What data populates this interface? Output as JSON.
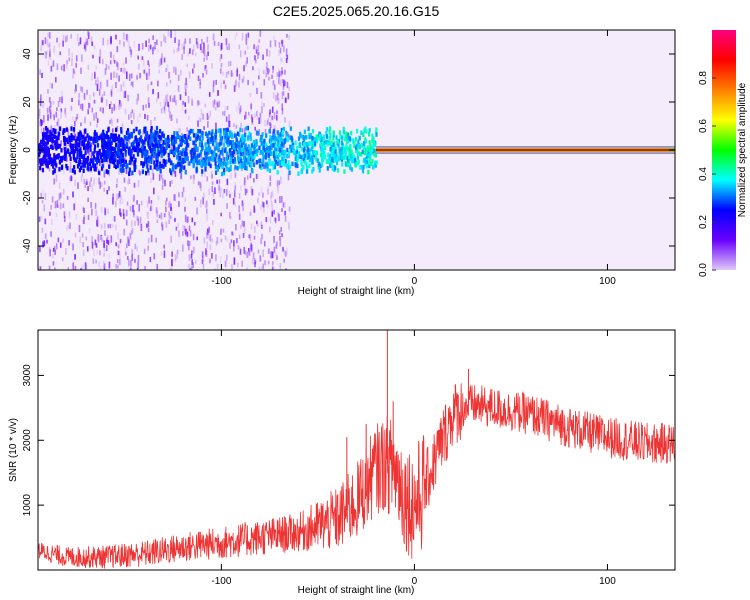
{
  "title": "C2E5.2025.065.20.16.G15",
  "colors": {
    "snr_line": "#ee3333",
    "background_fill": "#f5ecfb",
    "noise_purple": "#b58be6",
    "deep_purple": "#6a1fe0",
    "blue": "#2233e8"
  },
  "chart_data": [
    {
      "type": "heatmap",
      "name": "spectrogram",
      "xlabel": "Height of straight line (km)",
      "ylabel": "Frequency (Hz)",
      "xlim": [
        -195,
        135
      ],
      "ylim": [
        -50,
        50
      ],
      "xticks": [
        -100,
        0,
        100
      ],
      "xtick_labels": [
        "-100",
        "0",
        "100"
      ],
      "yticks": [
        -40,
        -20,
        0,
        20,
        40
      ],
      "ytick_labels": [
        "-40",
        "-20",
        "0",
        "20",
        "40"
      ],
      "colorbar": {
        "label": "Normalized spectral amplitude",
        "range": [
          0,
          1
        ],
        "ticks": [
          0,
          0.2,
          0.4,
          0.6,
          0.8
        ],
        "tick_labels": [
          "0.0",
          "0.2",
          "0.4",
          "0.6",
          "0.8"
        ],
        "colormap": [
          "#e0c8f8",
          "#6a00ff",
          "#0000ff",
          "#00ffff",
          "#00ff00",
          "#ffff00",
          "#ff7f00",
          "#ff0000",
          "#ff007f"
        ]
      },
      "features": {
        "coherent_line": {
          "x_start": -20,
          "x_end": 135,
          "frequency_hz": 0,
          "amplitude": 0.9
        },
        "noisy_band": {
          "x_start": -195,
          "x_end": -20,
          "center_hz": 0,
          "half_width_hz": 10,
          "amplitude_range": [
            0.15,
            0.45
          ]
        },
        "diffuse_noise": {
          "x_start": -195,
          "x_end": -65,
          "amplitude_range": [
            0.0,
            0.15
          ]
        }
      }
    },
    {
      "type": "line",
      "name": "snr",
      "xlabel": "Height of straight line (km)",
      "ylabel": "SNR (10 * v/v)",
      "xlim": [
        -195,
        135
      ],
      "ylim": [
        0,
        3700
      ],
      "xticks": [
        -100,
        0,
        100
      ],
      "xtick_labels": [
        "-100",
        "0",
        "100"
      ],
      "yticks": [
        1000,
        2000,
        3000
      ],
      "ytick_labels": [
        "1000",
        "2000",
        "3000"
      ],
      "trend": {
        "x": [
          -195,
          -180,
          -160,
          -140,
          -120,
          -100,
          -80,
          -60,
          -40,
          -30,
          -20,
          -15,
          -10,
          -5,
          0,
          5,
          10,
          15,
          20,
          25,
          30,
          40,
          50,
          60,
          70,
          80,
          90,
          100,
          110,
          120,
          135
        ],
        "y": [
          300,
          200,
          200,
          250,
          350,
          420,
          500,
          580,
          780,
          1050,
          1550,
          1650,
          1550,
          1150,
          1000,
          1250,
          1650,
          2050,
          2400,
          2500,
          2550,
          2500,
          2450,
          2400,
          2300,
          2200,
          2120,
          2050,
          2000,
          1950,
          1950
        ]
      },
      "spikes": [
        {
          "x": -14,
          "y": 3700
        },
        {
          "x": -11,
          "y": 2600
        },
        {
          "x": -25,
          "y": 2250
        },
        {
          "x": -35,
          "y": 2050
        },
        {
          "x": 28,
          "y": 3100
        }
      ]
    }
  ]
}
